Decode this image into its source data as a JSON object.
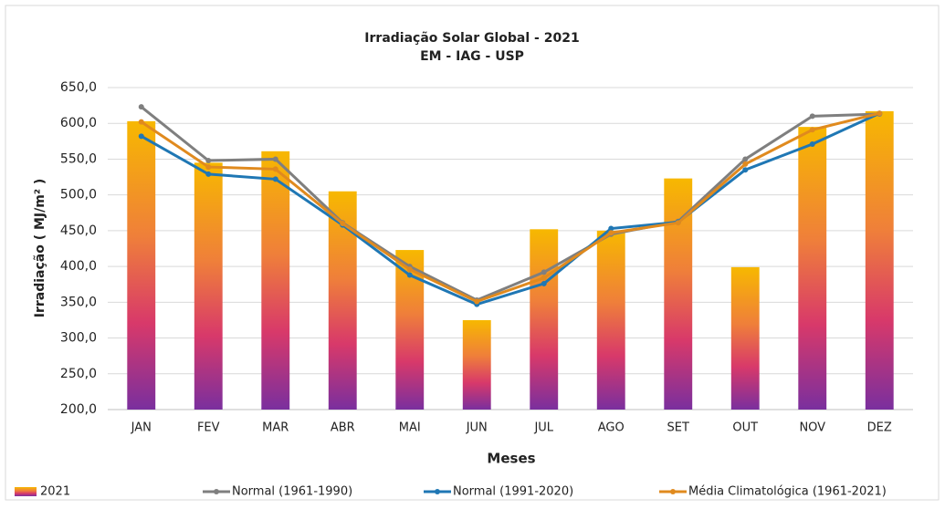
{
  "chart_data": {
    "type": "combo",
    "title": "Irradiação Solar Global - 2021",
    "subtitle": "EM - IAG - USP",
    "x_label": "Meses",
    "y_label": "Irradiação ( MJ/m² )",
    "categories": [
      "JAN",
      "FEV",
      "MAR",
      "ABR",
      "MAI",
      "JUN",
      "JUL",
      "AGO",
      "SET",
      "OUT",
      "NOV",
      "DEZ"
    ],
    "series": [
      {
        "name": "2021",
        "type": "bar",
        "color": "#f7b800",
        "values": [
          603,
          545,
          561,
          505,
          423,
          325,
          452,
          450,
          523,
          399,
          595,
          617
        ]
      },
      {
        "name": "Normal (1961-1990)",
        "type": "line",
        "color": "#7f7f7f",
        "values": [
          623,
          548,
          550,
          461,
          400,
          353,
          392,
          445,
          463,
          550,
          610,
          613
        ]
      },
      {
        "name": "Normal (1991-2020)",
        "type": "line",
        "color": "#1f77b4",
        "values": [
          582,
          529,
          522,
          458,
          388,
          347,
          376,
          453,
          462,
          535,
          571,
          614
        ]
      },
      {
        "name": "Média Climatológica (1961-2021)",
        "type": "line",
        "color": "#e08a1e",
        "values": [
          602,
          539,
          536,
          460,
          396,
          351,
          384,
          447,
          461,
          543,
          591,
          614
        ]
      }
    ],
    "ylim": [
      200,
      650
    ],
    "yticks": [
      {
        "value": 200,
        "label": "200,0"
      },
      {
        "value": 250,
        "label": "250,0"
      },
      {
        "value": 300,
        "label": "300,0"
      },
      {
        "value": 350,
        "label": "350,0"
      },
      {
        "value": 400,
        "label": "400,0"
      },
      {
        "value": 450,
        "label": "450,0"
      },
      {
        "value": 500,
        "label": "500,0"
      },
      {
        "value": 550,
        "label": "550,0"
      },
      {
        "value": 600,
        "label": "600,0"
      },
      {
        "value": 650,
        "label": "650,0"
      }
    ],
    "grid": true
  }
}
